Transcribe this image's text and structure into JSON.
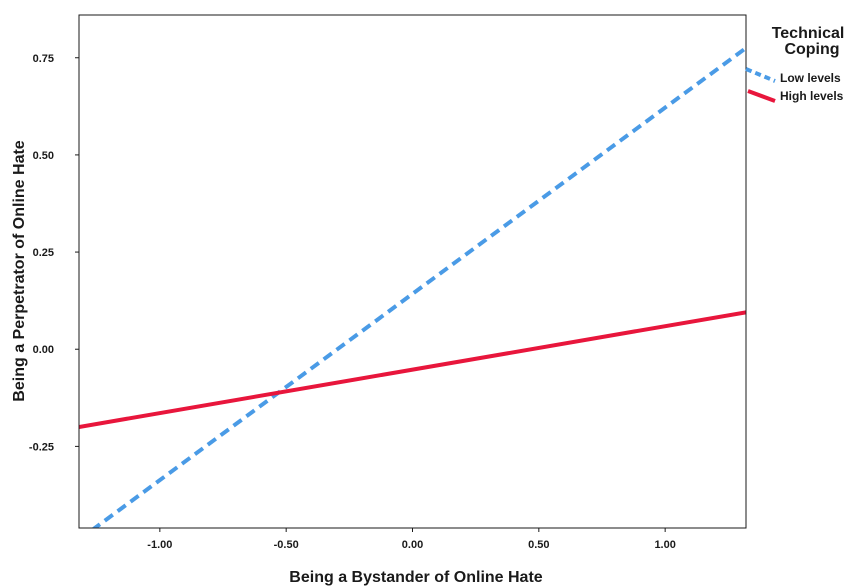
{
  "chart_data": {
    "type": "line",
    "xlabel": "Being a Bystander of Online Hate",
    "ylabel": "Being a Perpetrator of Online Hate",
    "xlim": [
      -1.32,
      1.32
    ],
    "ylim": [
      -0.46,
      0.86
    ],
    "xticks": [
      -1.0,
      -0.5,
      0.0,
      0.5,
      1.0
    ],
    "xtick_labels": [
      "-1.00",
      "-0.50",
      "0.00",
      "0.50",
      "1.00"
    ],
    "yticks": [
      -0.25,
      0.0,
      0.25,
      0.5,
      0.75
    ],
    "ytick_labels": [
      "-0.25",
      "0.00",
      "0.25",
      "0.50",
      "0.75"
    ],
    "grid": false,
    "legend": {
      "title_lines": [
        "Technical",
        "Coping"
      ],
      "placement": "right, outside plot"
    },
    "series": [
      {
        "name": "Low levels",
        "style": "dashed",
        "color": "#4a9be6",
        "x": [
          -1.32,
          1.32
        ],
        "y": [
          -0.49,
          0.775
        ]
      },
      {
        "name": "High levels",
        "style": "solid",
        "color": "#e8163c",
        "x": [
          -1.32,
          1.32
        ],
        "y": [
          -0.2,
          0.095
        ]
      }
    ]
  }
}
